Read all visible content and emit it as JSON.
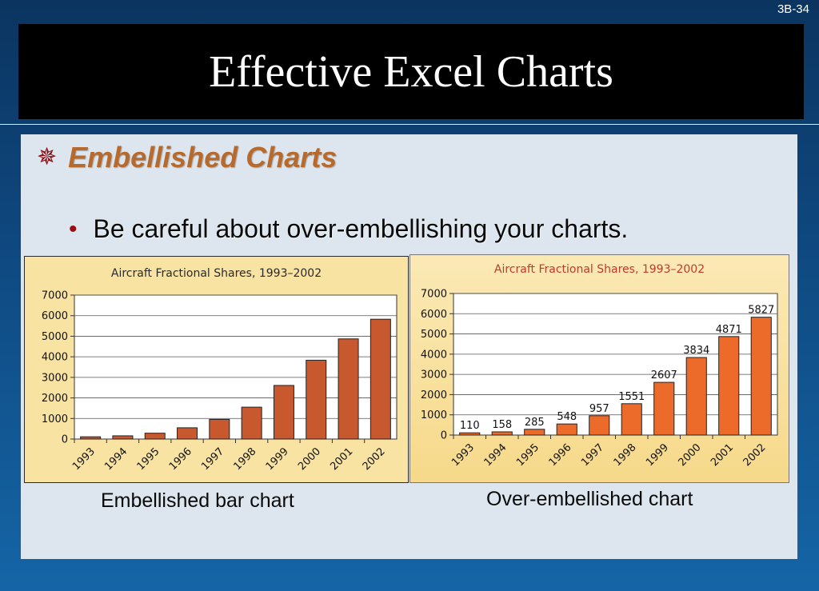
{
  "slide": {
    "number": "3B-34",
    "title": "Effective Excel Charts",
    "heading": "Embellished Charts",
    "heading_icon": "star-burst-icon",
    "bullet": "Be careful about over-embellishing your charts.",
    "colors": {
      "background_top": "#0b3460",
      "background_bottom": "#1565a6",
      "heading": "#b86a2c",
      "bullet_dot": "#9b0d14"
    }
  },
  "captions": {
    "left": "Embellished bar chart",
    "right": "Over-embellished chart"
  },
  "chart_data": [
    {
      "type": "bar",
      "title": "Aircraft Fractional Shares, 1993–2002",
      "categories": [
        "1993",
        "1994",
        "1995",
        "1996",
        "1997",
        "1998",
        "1999",
        "2000",
        "2001",
        "2002"
      ],
      "values": [
        110,
        158,
        285,
        548,
        957,
        1551,
        2607,
        3834,
        4871,
        5827
      ],
      "ylim": [
        0,
        7000
      ],
      "yticks": [
        "0",
        "1000",
        "2000",
        "3000",
        "4000",
        "5000",
        "6000",
        "7000"
      ],
      "grid": true,
      "data_labels": false,
      "bar_color": "#c8582e",
      "title_color": "#2a2a2a"
    },
    {
      "type": "bar",
      "title": "Aircraft Fractional Shares, 1993–2002",
      "categories": [
        "1993",
        "1994",
        "1995",
        "1996",
        "1997",
        "1998",
        "1999",
        "2000",
        "2001",
        "2002"
      ],
      "values": [
        110,
        158,
        285,
        548,
        957,
        1551,
        2607,
        3834,
        4871,
        5827
      ],
      "ylim": [
        0,
        7000
      ],
      "yticks": [
        "0",
        "1000",
        "2000",
        "3000",
        "4000",
        "5000",
        "6000",
        "7000"
      ],
      "grid": true,
      "data_labels": true,
      "bar_color": "#ec6a2a",
      "title_color": "#c0392b"
    }
  ]
}
